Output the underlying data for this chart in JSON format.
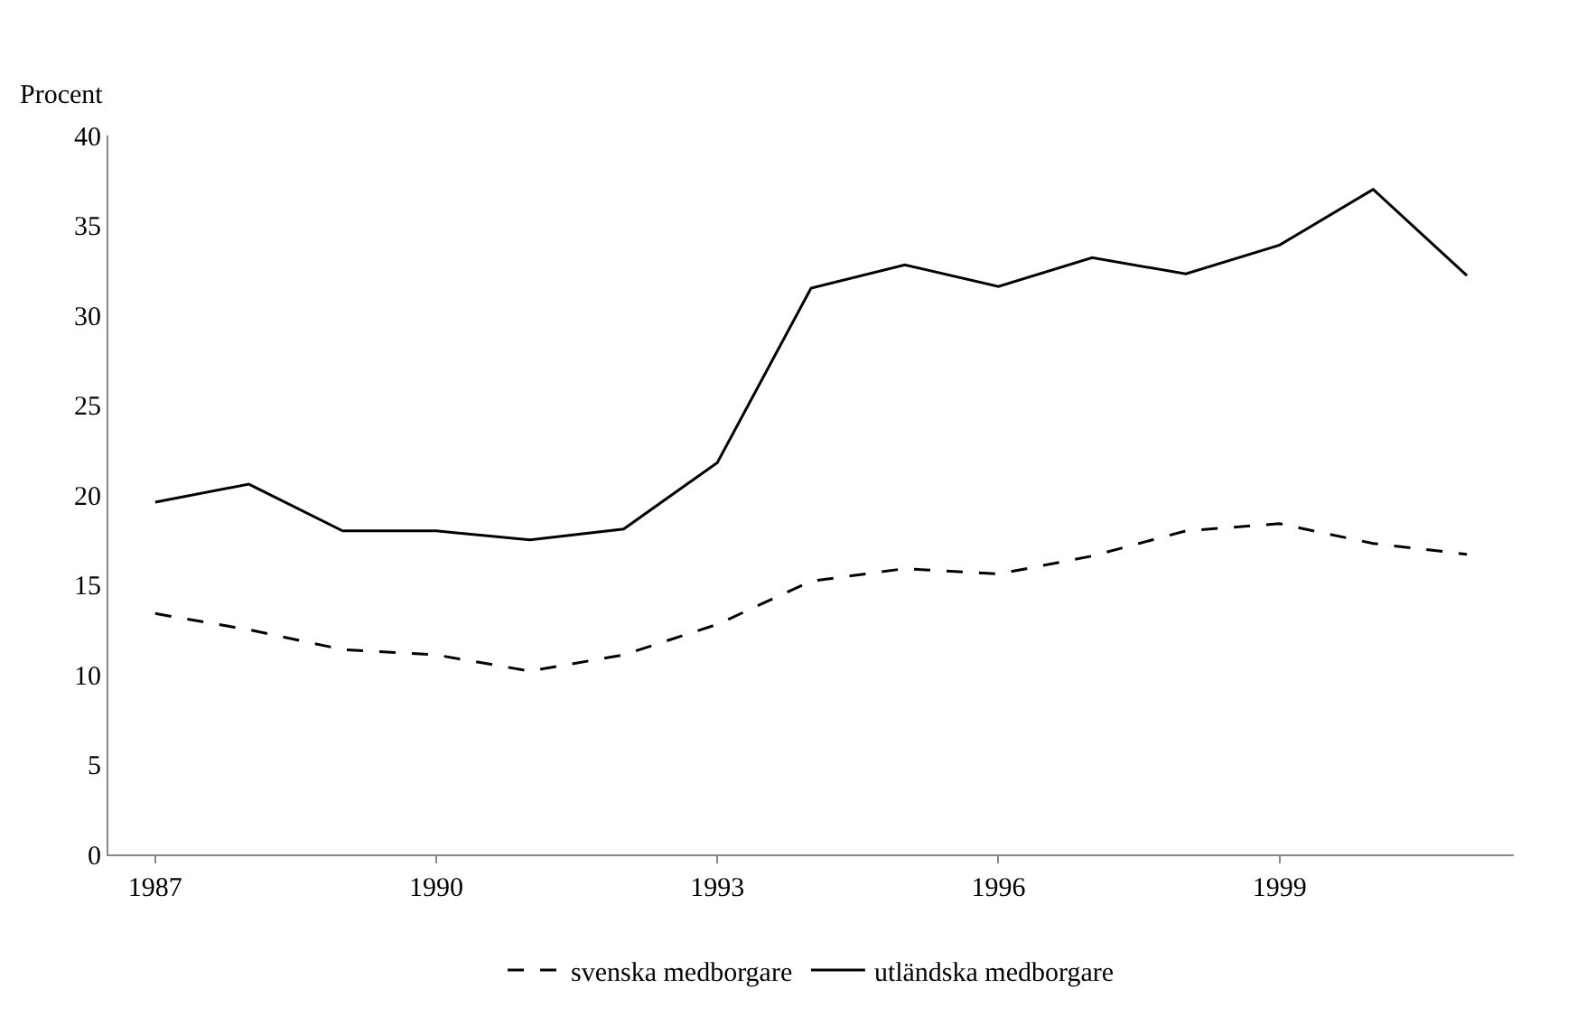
{
  "chart_data": {
    "type": "line",
    "ylabel": "Procent",
    "categories": [
      "1987",
      null,
      null,
      "1990",
      null,
      null,
      "1993",
      null,
      null,
      "1996",
      null,
      null,
      "1999",
      null,
      null
    ],
    "series": [
      {
        "name": "svenska medborgare",
        "color": "#000000",
        "line_style": "dashed",
        "values": [
          13.4,
          12.5,
          11.4,
          11.1,
          10.2,
          11.1,
          12.8,
          15.2,
          15.9,
          15.6,
          16.6,
          18.0,
          18.4,
          17.3,
          16.7
        ]
      },
      {
        "name": "utländska medborgare",
        "color": "#000000",
        "line_style": "solid",
        "values": [
          19.6,
          20.6,
          18.0,
          18.0,
          17.5,
          18.1,
          21.8,
          31.5,
          32.8,
          31.6,
          33.2,
          32.3,
          33.9,
          37.0,
          32.2
        ]
      }
    ],
    "ylim": [
      0,
      40
    ],
    "yticks": [
      0,
      5,
      10,
      15,
      20,
      25,
      30,
      35,
      40
    ],
    "legend": "bottom",
    "marker": "none"
  }
}
